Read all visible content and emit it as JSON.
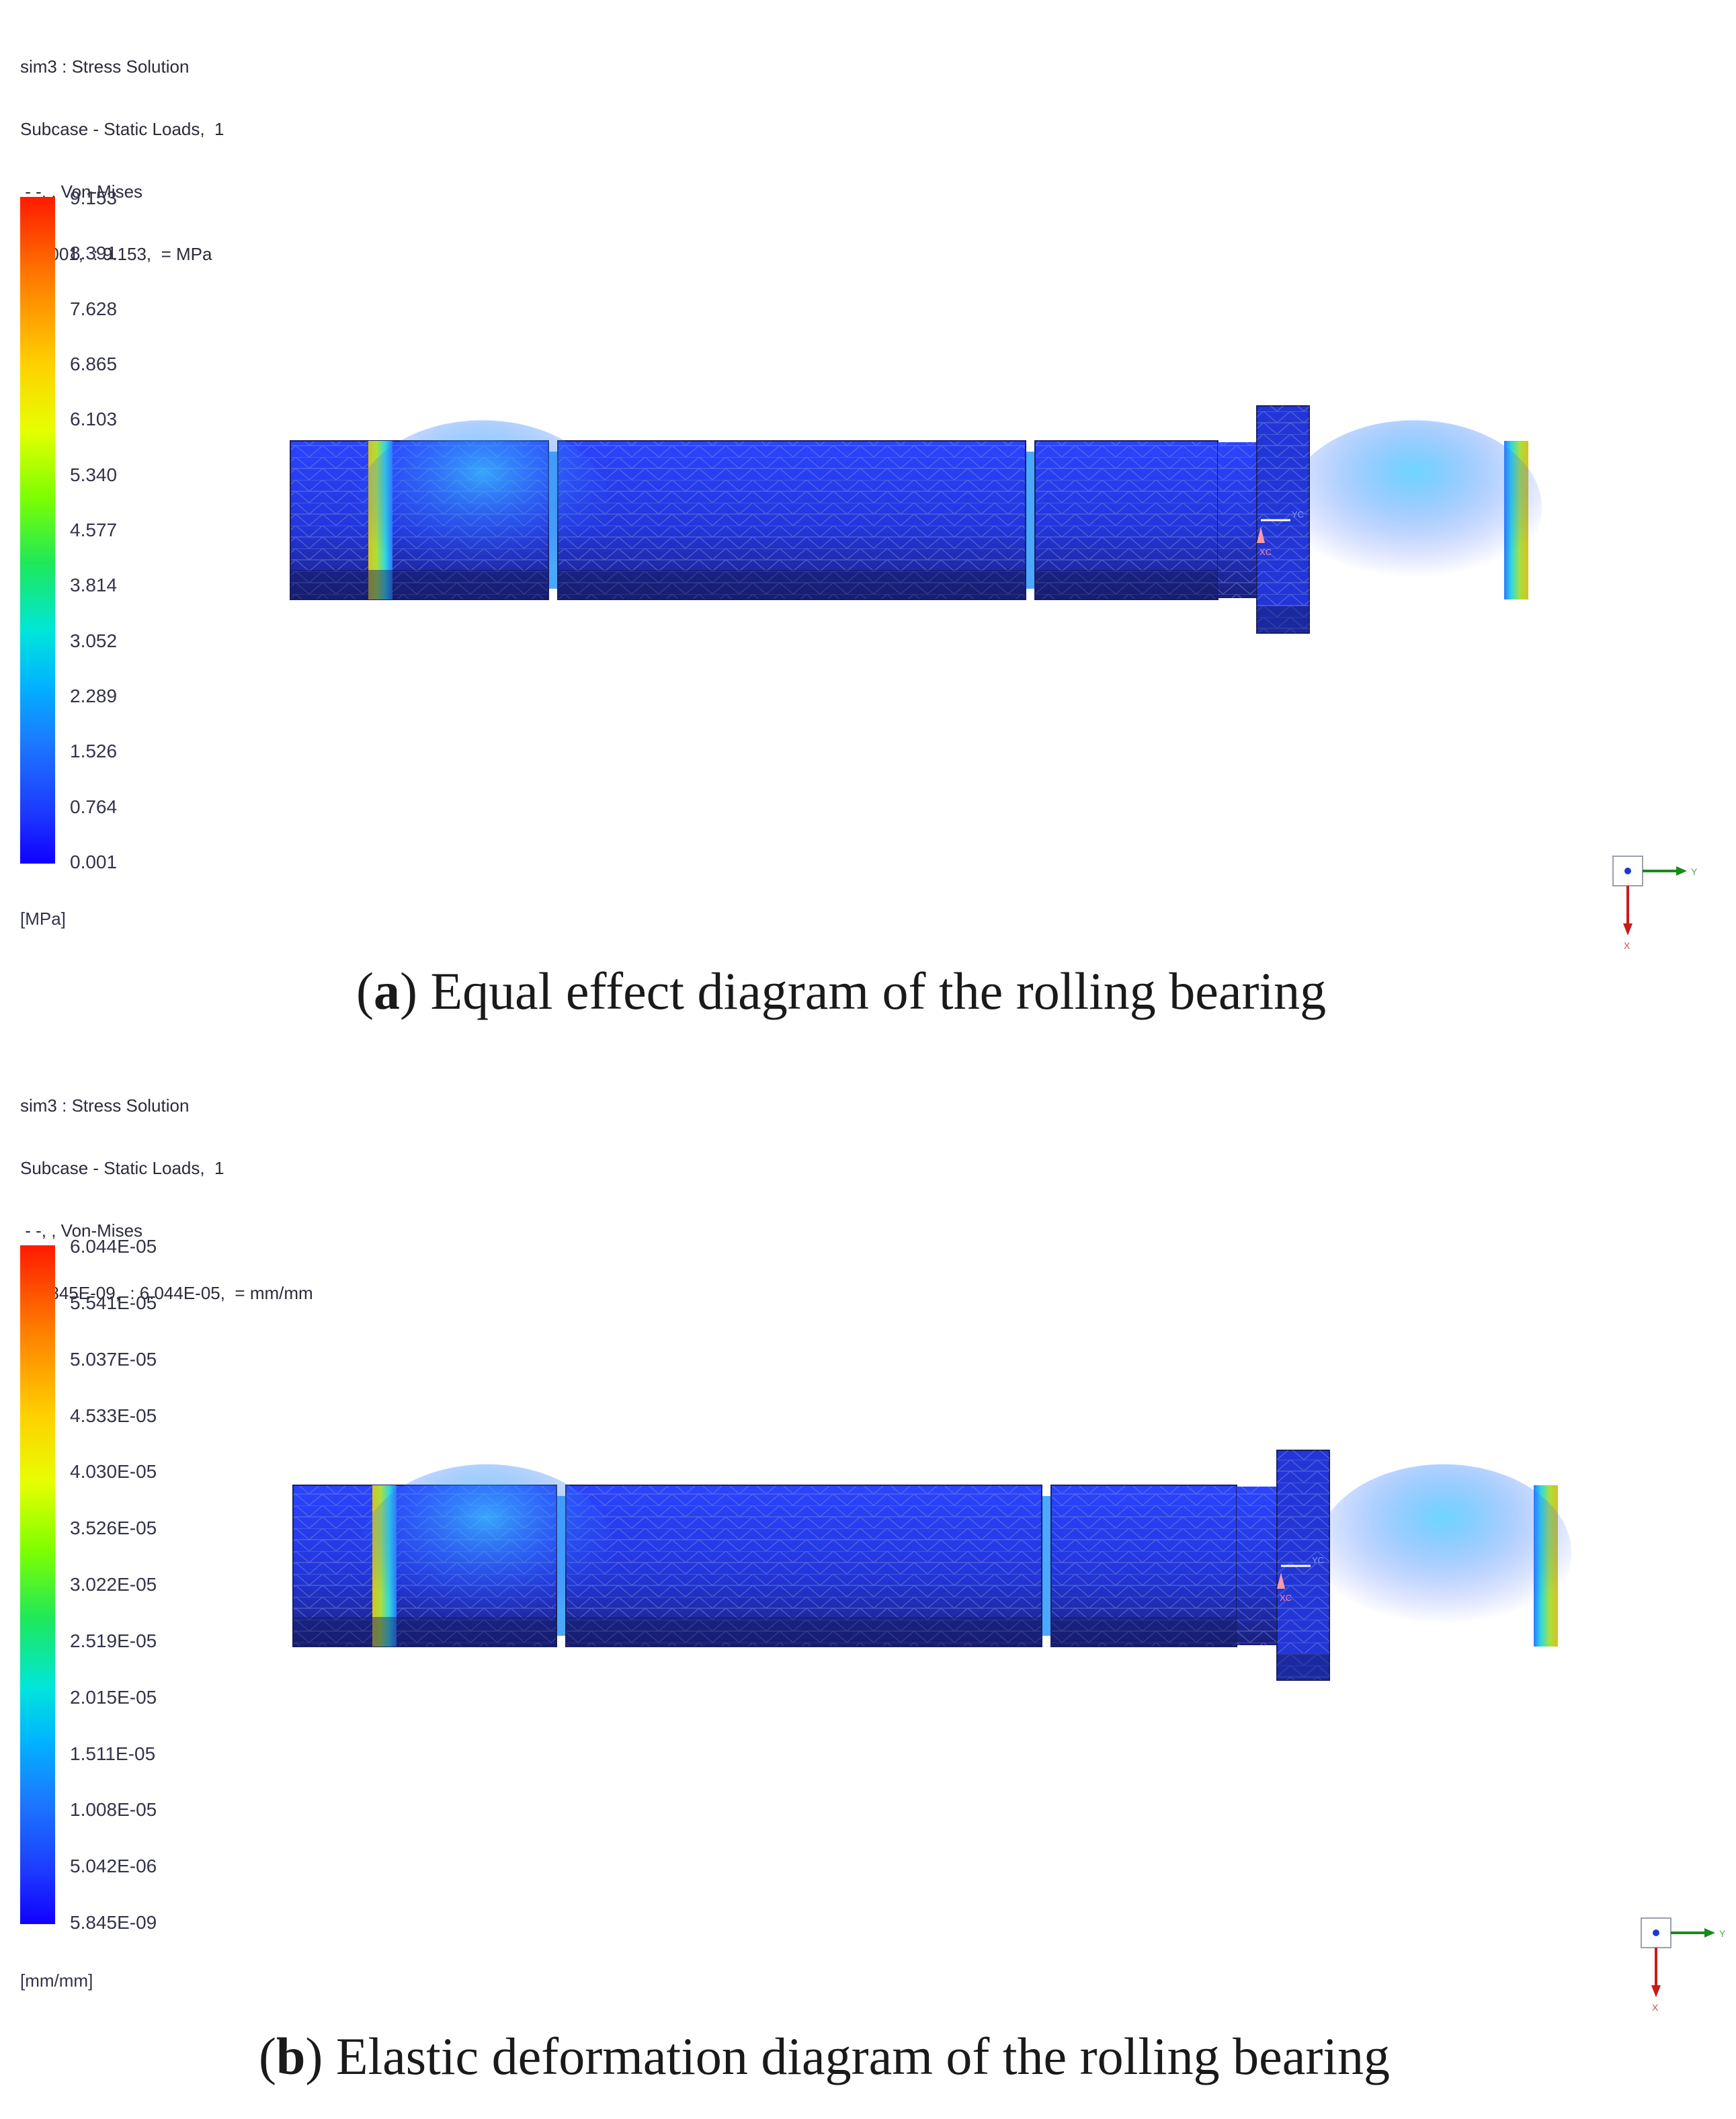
{
  "panels": [
    {
      "id": "a",
      "header": [
        "sim3 : Stress Solution",
        "Subcase - Static Loads,  1",
        " - -, , Von-Mises",
        " : 0.001,  : 9.153,  = MPa",
        " :  -"
      ],
      "legend_ticks": [
        "9.153",
        "8.391",
        "7.628",
        "6.865",
        "6.103",
        "5.340",
        "4.577",
        "3.814",
        "3.052",
        "2.289",
        "1.526",
        "0.764",
        "0.001"
      ],
      "unit": "[MPa]",
      "caption_letter": "a",
      "caption_text": "Equal effect diagram of the rolling bearing",
      "triad": {
        "axis_h": "Y",
        "axis_v": "X"
      },
      "model_labels": {
        "xc": "XC",
        "yc": "YC"
      }
    },
    {
      "id": "b",
      "header": [
        "sim3 : Stress Solution",
        "Subcase - Static Loads,  1",
        " - -, , Von-Mises",
        " : 5.845E-09,  : 6.044E-05,  = mm/mm",
        " :  -"
      ],
      "legend_ticks": [
        "6.044E-05",
        "5.541E-05",
        "5.037E-05",
        "4.533E-05",
        "4.030E-05",
        "3.526E-05",
        "3.022E-05",
        "2.519E-05",
        "2.015E-05",
        "1.511E-05",
        "1.008E-05",
        "5.042E-06",
        "5.845E-09"
      ],
      "unit": "[mm/mm]",
      "caption_letter": "b",
      "caption_text": "Elastic deformation diagram of the rolling bearing",
      "triad": {
        "axis_h": "Y",
        "axis_v": "X"
      },
      "model_labels": {
        "xc": "XC",
        "yc": "YC"
      }
    }
  ],
  "colors": {
    "shaft_blue": "#2238e0",
    "shaft_dark": "#1a1f7a",
    "hot_band": "#e0d020",
    "cyan_band": "#39c8ff",
    "mesh_line": "#7f8cd6",
    "triad_y": "#1a8a1a",
    "triad_x": "#cc1a1a",
    "triad_dot": "#1a3ad0"
  }
}
